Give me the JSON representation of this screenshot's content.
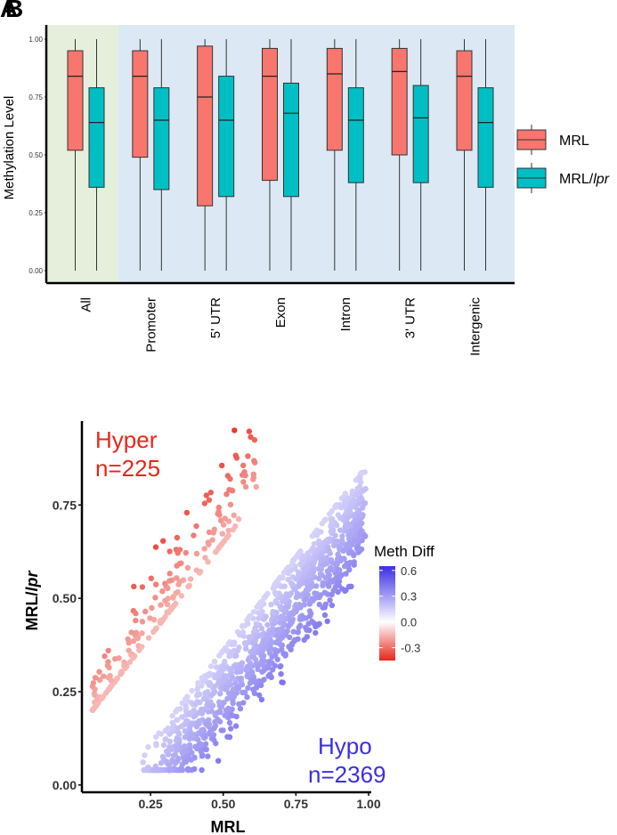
{
  "figure": {
    "panel_a_label": "A",
    "panel_b_label": "B"
  },
  "chart_data": [
    {
      "type": "box",
      "panel": "A",
      "ylabel": "Methylation Level",
      "ylim": [
        0,
        1
      ],
      "yticks": [
        "0.00",
        "0.25",
        "0.50",
        "0.75",
        "1.00"
      ],
      "ytick_values": [
        0,
        0.25,
        0.5,
        0.75,
        1.0
      ],
      "categories": [
        "All",
        "Promoter",
        "5' UTR",
        "Exon",
        "Intron",
        "3' UTR",
        "Intergenic"
      ],
      "background_groups": [
        {
          "categories": [
            "All"
          ],
          "color": "#e5efdc"
        },
        {
          "categories": [
            "Promoter",
            "5' UTR",
            "Exon",
            "Intron",
            "3' UTR",
            "Intergenic"
          ],
          "color": "#dce9f4"
        }
      ],
      "series": [
        {
          "name": "MRL",
          "color": "#f8766d",
          "boxes": [
            {
              "min": 0.0,
              "q1": 0.52,
              "median": 0.84,
              "q3": 0.95,
              "max": 1.0
            },
            {
              "min": 0.0,
              "q1": 0.49,
              "median": 0.84,
              "q3": 0.95,
              "max": 1.0
            },
            {
              "min": 0.0,
              "q1": 0.28,
              "median": 0.75,
              "q3": 0.97,
              "max": 1.0
            },
            {
              "min": 0.0,
              "q1": 0.39,
              "median": 0.84,
              "q3": 0.96,
              "max": 1.0
            },
            {
              "min": 0.0,
              "q1": 0.52,
              "median": 0.85,
              "q3": 0.96,
              "max": 1.0
            },
            {
              "min": 0.0,
              "q1": 0.5,
              "median": 0.86,
              "q3": 0.96,
              "max": 1.0
            },
            {
              "min": 0.0,
              "q1": 0.52,
              "median": 0.84,
              "q3": 0.95,
              "max": 1.0
            }
          ]
        },
        {
          "name": "MRL/lpr",
          "color": "#00bfc4",
          "boxes": [
            {
              "min": 0.0,
              "q1": 0.36,
              "median": 0.64,
              "q3": 0.79,
              "max": 1.0
            },
            {
              "min": 0.0,
              "q1": 0.35,
              "median": 0.65,
              "q3": 0.79,
              "max": 1.0
            },
            {
              "min": 0.0,
              "q1": 0.32,
              "median": 0.65,
              "q3": 0.84,
              "max": 1.0
            },
            {
              "min": 0.0,
              "q1": 0.32,
              "median": 0.68,
              "q3": 0.81,
              "max": 1.0
            },
            {
              "min": 0.0,
              "q1": 0.38,
              "median": 0.65,
              "q3": 0.79,
              "max": 1.0
            },
            {
              "min": 0.0,
              "q1": 0.38,
              "median": 0.66,
              "q3": 0.8,
              "max": 1.0
            },
            {
              "min": 0.0,
              "q1": 0.36,
              "median": 0.64,
              "q3": 0.79,
              "max": 1.0
            }
          ]
        }
      ],
      "legend": [
        {
          "label": "MRL",
          "color": "#f8766d"
        },
        {
          "label_prefix": "MRL/",
          "label_italic": "lpr",
          "color": "#00bfc4"
        }
      ],
      "legend_position": "right"
    },
    {
      "type": "scatter",
      "panel": "B",
      "xlabel": "MRL",
      "ylabel_prefix": "MRL/",
      "ylabel_italic": "lpr",
      "xlim": [
        0.02,
        1.0
      ],
      "ylim": [
        -0.01,
        0.97
      ],
      "xticks": [
        "0.25",
        "0.50",
        "0.75",
        "1.00"
      ],
      "xtick_values": [
        0.25,
        0.5,
        0.75,
        1.0
      ],
      "yticks": [
        "0.00",
        "0.25",
        "0.50",
        "0.75"
      ],
      "ytick_values": [
        0.0,
        0.25,
        0.5,
        0.75
      ],
      "groups": [
        {
          "label_line1": "Hyper",
          "label_line2": "n=225",
          "color": "#e8261a",
          "count": 225,
          "x_range": [
            0.05,
            0.62
          ],
          "trend": [
            0.11,
            1.25
          ]
        },
        {
          "label_line1": "Hypo",
          "label_line2": "n=2369",
          "color": "#3b2ee6",
          "count": 2369,
          "x_range": [
            0.22,
            0.99
          ],
          "trend": [
            -0.25,
            1.0
          ]
        }
      ],
      "colorbar": {
        "title": "Meth Diff",
        "ticks": [
          "0.6",
          "0.3",
          "0.0",
          "-0.3"
        ],
        "tick_values": [
          0.6,
          0.3,
          0.0,
          -0.3
        ],
        "range": [
          -0.45,
          0.65
        ],
        "stops": [
          "#e8261a",
          "#ffffff",
          "#3b2ee6"
        ]
      },
      "legend_position": "right"
    }
  ]
}
